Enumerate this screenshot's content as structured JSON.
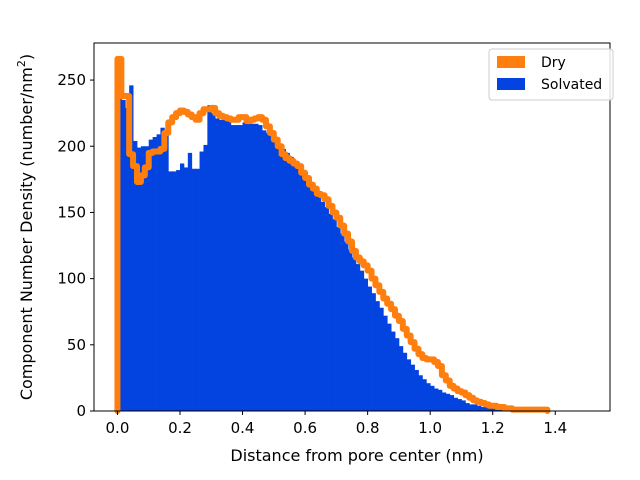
{
  "chart_data": {
    "type": "histogram",
    "xlabel": "Distance from pore center (nm)",
    "ylabel_main": "Component Number Density (number/nm",
    "ylabel_sup": "2",
    "ylabel_close": ")",
    "xlim": [
      -0.075,
      1.575
    ],
    "ylim": [
      0,
      278
    ],
    "xticks": [
      0.0,
      0.2,
      0.4,
      0.6,
      0.8,
      1.0,
      1.2,
      1.4
    ],
    "xtick_labels": [
      "0.0",
      "0.2",
      "0.4",
      "0.6",
      "0.8",
      "1.0",
      "1.2",
      "1.4"
    ],
    "yticks": [
      0,
      50,
      100,
      150,
      200,
      250
    ],
    "ytick_labels": [
      "0",
      "50",
      "100",
      "150",
      "200",
      "250"
    ],
    "bin_width": 0.0125,
    "grid": false,
    "legend_position": "top-right",
    "series": [
      {
        "name": "Dry",
        "style": "step",
        "color": "#ff7f0e",
        "x_start": 0.0,
        "values": [
          266,
          238,
          238,
          194,
          185,
          173,
          178,
          184,
          195,
          196,
          196,
          198,
          210,
          218,
          222,
          225,
          227,
          226,
          224,
          222,
          220,
          225,
          228,
          228,
          229,
          225,
          223,
          222,
          221,
          220,
          220,
          222,
          222,
          219,
          220,
          221,
          222,
          220,
          215,
          210,
          205,
          200,
          194,
          191,
          189,
          187,
          185,
          180,
          176,
          171,
          168,
          164,
          163,
          160,
          155,
          150,
          146,
          140,
          134,
          128,
          121,
          116,
          113,
          110,
          106,
          100,
          95,
          90,
          85,
          81,
          77,
          72,
          68,
          62,
          57,
          52,
          47,
          43,
          40,
          39,
          39,
          37,
          34,
          27,
          23,
          19,
          17,
          15,
          14,
          12,
          10,
          8,
          7,
          6,
          5,
          4,
          4,
          3,
          3,
          2,
          2,
          1,
          1,
          1,
          1,
          1,
          1,
          1,
          1,
          1
        ]
      },
      {
        "name": "Solvated",
        "style": "bar",
        "color": "#0343df",
        "x_start": 0.0,
        "values": [
          258,
          235,
          229,
          246,
          204,
          199,
          200,
          200,
          205,
          207,
          209,
          214,
          211,
          181,
          181,
          182,
          187,
          184,
          195,
          183,
          183,
          196,
          201,
          231,
          225,
          221,
          220,
          223,
          219,
          216,
          216,
          216,
          218,
          218,
          217,
          217,
          216,
          212,
          210,
          208,
          205,
          202,
          198,
          195,
          192,
          188,
          184,
          180,
          176,
          172,
          168,
          163,
          158,
          154,
          149,
          145,
          139,
          134,
          128,
          122,
          116,
          111,
          106,
          100,
          94,
          89,
          83,
          78,
          72,
          66,
          60,
          55,
          49,
          44,
          39,
          35,
          31,
          27,
          24,
          21,
          19,
          17,
          16,
          14,
          13,
          12,
          10,
          9,
          8,
          6,
          5,
          5,
          4,
          3,
          3,
          2,
          2,
          2,
          1,
          1,
          1,
          1,
          1,
          1,
          1,
          1,
          1,
          1,
          1,
          1
        ]
      }
    ]
  }
}
